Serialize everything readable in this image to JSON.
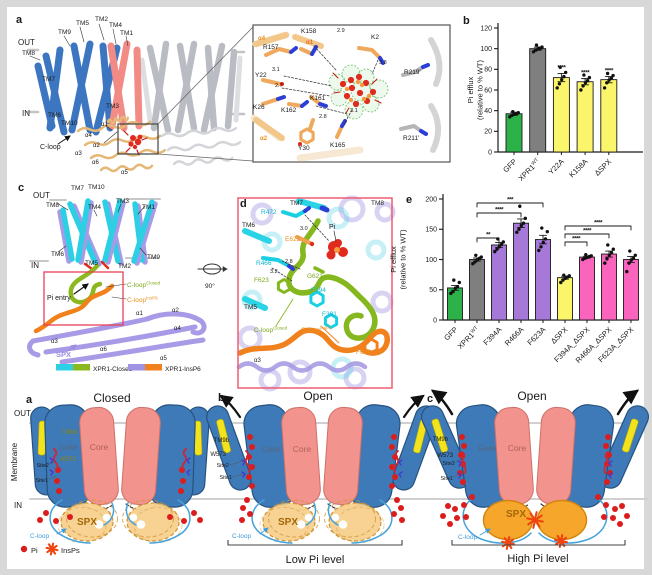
{
  "figure": {
    "bg": "#ffffff",
    "frame": "#d8d8d8",
    "red_box": "#e8405a"
  },
  "panel_a": {
    "label": "a",
    "out": "OUT",
    "in_": "IN",
    "tm1": "TM1",
    "tm2": "TM2",
    "tm3": "TM3",
    "tm4": "TM4",
    "tm5": "TM5",
    "tm6": "TM6",
    "tm7": "TM7",
    "tm8": "TM8",
    "tm9": "TM9",
    "tm10": "TM10",
    "c_loop": "C-loop",
    "a1": "α1",
    "a2": "α2",
    "a3": "α3",
    "a4": "α4",
    "a5": "α5",
    "a6": "α6",
    "inset": {
      "a4": "α4",
      "a1": "α1",
      "a2": "α2",
      "k158": "K158",
      "r157": "R157",
      "y22": "Y22",
      "k26": "K26",
      "k162": "K162",
      "k161": "K161",
      "y30": "Y30",
      "k165": "K165",
      "k2": "K2",
      "r219": "R219'",
      "r211": "R211'",
      "d29": "2.9",
      "d38": "3.8",
      "d31a": "3.1",
      "d27": "2.7",
      "d28": "2.8",
      "d31b": "3.1"
    }
  },
  "panel_b": {
    "label": "b"
  },
  "panel_c": {
    "label": "c",
    "out": "OUT",
    "in_": "IN",
    "tm1": "TM1",
    "tm2": "TM2",
    "tm3": "TM3",
    "tm4": "TM4",
    "tm5": "TM5",
    "tm6": "TM6",
    "tm7": "TM7",
    "tm8": "TM8",
    "tm9": "TM9",
    "tm10": "TM10",
    "pi_entry": "Pi entry",
    "cloop_closed_base": "C-loop",
    "cloop_closed_sup": "Closed",
    "cloop_insp6_base": "C-loop",
    "cloop_insp6_sup": "InsP6",
    "a1": "α1",
    "a2": "α2",
    "a3": "α3",
    "a4": "α4",
    "a5": "α5",
    "a6": "α6",
    "spx": "SPX",
    "rotation": "90°",
    "legend_closed": "XPR1-Closed",
    "legend_insp6": "XPR1-InsP6"
  },
  "panel_d": {
    "label": "d",
    "tm5": "TM5",
    "tm6": "TM6",
    "tm7": "TM7",
    "tm8": "TM8",
    "r472": "R472",
    "e622": "E622",
    "r466": "R466",
    "f623_closed": "F623",
    "g621": "G621",
    "f394": "F394",
    "f391": "F391",
    "f623_insp6": "F623",
    "pi": "Pi",
    "d30": "3.0",
    "d28": "2.8",
    "d32": "3.2",
    "cloop_closed_base": "C-loop",
    "cloop_closed_sup": "Closed",
    "cloop_insp6_base": "C-loop",
    "cloop_insp6_sup": "InsP6",
    "a3": "α3"
  },
  "panel_e": {
    "label": "e"
  },
  "chart_data": [
    {
      "id": "b",
      "type": "bar",
      "ylabel_lines": [
        "Pi efflux",
        "(relative to % WT)"
      ],
      "ylim": [
        0,
        120
      ],
      "yticks": [
        0,
        20,
        40,
        60,
        80,
        100,
        120
      ],
      "categories": [
        {
          "base": "GFP"
        },
        {
          "base": "XPR1",
          "sup": "WT"
        },
        {
          "base": "Y22A"
        },
        {
          "base": "K158A"
        },
        {
          "base": "ΔSPX"
        }
      ],
      "values": [
        37,
        100,
        72,
        68,
        70
      ],
      "errors": [
        1.5,
        1.5,
        4,
        3,
        3
      ],
      "colors": [
        "#2db24a",
        "#7f7f7f",
        "#fbf56b",
        "#fbf56b",
        "#fbf56b"
      ],
      "sig": [
        "",
        "",
        "****",
        "****",
        "****"
      ],
      "points": [
        [
          34,
          35.5,
          36.5,
          37,
          38,
          39
        ],
        [
          97,
          98.5,
          99.5,
          100,
          101.5,
          103.5,
          100.5
        ],
        [
          62,
          66,
          70,
          73,
          77,
          82
        ],
        [
          60,
          64,
          67,
          69,
          72,
          74.5
        ],
        [
          62,
          67,
          69.5,
          71.5,
          74,
          76
        ]
      ]
    },
    {
      "id": "e",
      "type": "bar",
      "ylabel_lines": [
        "Pi efflux",
        "(relative to % WT)"
      ],
      "ylim": [
        0,
        200
      ],
      "yticks": [
        0,
        50,
        100,
        150,
        200
      ],
      "categories": [
        {
          "base": "GFP"
        },
        {
          "base": "XPR1",
          "sup": "WT"
        },
        {
          "base": "F394A"
        },
        {
          "base": "R466A"
        },
        {
          "base": "F623A"
        },
        {
          "base": "ΔSPX"
        },
        {
          "base": "F394A_ΔSPX"
        },
        {
          "base": "R466A_ΔSPX"
        },
        {
          "base": "F623A_ΔSPX"
        }
      ],
      "values": [
        53,
        100,
        124,
        160,
        133,
        70,
        104,
        109,
        100
      ],
      "errors": [
        4,
        2.5,
        4,
        7,
        7,
        2.5,
        1.5,
        5,
        5
      ],
      "colors": [
        "#2db24a",
        "#7f7f7f",
        "#a678d8",
        "#a678d8",
        "#a678d8",
        "#fbf56b",
        "#fa64bd",
        "#fa64bd",
        "#fa64bd"
      ],
      "sig": [
        "",
        "",
        "",
        "",
        "",
        "",
        "",
        "",
        ""
      ],
      "points": [
        [
          44,
          47,
          52,
          55,
          62,
          66
        ],
        [
          93,
          96,
          99,
          102,
          104,
          107
        ],
        [
          113,
          117,
          121,
          125,
          129,
          134
        ],
        [
          145,
          150,
          156,
          160,
          168,
          188
        ],
        [
          115,
          121,
          128,
          134,
          146,
          152
        ],
        [
          62,
          66,
          69,
          71,
          73,
          74
        ],
        [
          100,
          102,
          103.5,
          105,
          106,
          108
        ],
        [
          94,
          101,
          107,
          111,
          117,
          124
        ],
        [
          80,
          94,
          99,
          102,
          107,
          114
        ]
      ],
      "brackets": [
        {
          "from": 1,
          "to": 2,
          "label": "**",
          "y": 48
        },
        {
          "from": 1,
          "to": 3,
          "label": "****",
          "y": 23
        },
        {
          "from": 1,
          "to": 4,
          "label": "***",
          "y": 13
        },
        {
          "from": 5,
          "to": 6,
          "label": "****",
          "y": 52
        },
        {
          "from": 5,
          "to": 7,
          "label": "****",
          "y": 44
        },
        {
          "from": 5,
          "to": 8,
          "label": "****",
          "y": 36
        }
      ]
    }
  ],
  "model": {
    "label_a": "a",
    "label_b": "b",
    "label_c": "c",
    "title_closed": "Closed",
    "title_open": "Open",
    "out": "OUT",
    "in_": "IN",
    "membrane": "Membrane",
    "tm9b": "TM9b",
    "gate": "Gate",
    "core": "Core",
    "w573": "W573",
    "site1": "Site1",
    "site2": "Site2",
    "spx": "SPX",
    "c_loop": "C-loop",
    "legend_pi": "Pi",
    "legend_insps": "InsPs",
    "low": "Low Pi level",
    "high": "High Pi level"
  }
}
